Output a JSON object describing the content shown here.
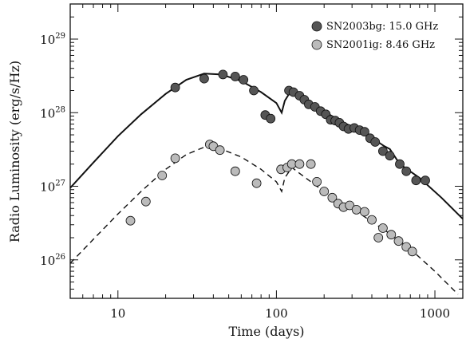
{
  "chart_data": {
    "type": "scatter",
    "title": "",
    "xlabel": "Time (days)",
    "ylabel": "Radio Luminosity (erg/s/Hz)",
    "x_scale": "log",
    "y_scale": "log",
    "xlim": [
      5,
      1500
    ],
    "ylim": [
      3e+25,
      3e+29
    ],
    "x_ticks": [
      {
        "value": 10,
        "label": "10"
      },
      {
        "value": 100,
        "label": "100"
      },
      {
        "value": 1000,
        "label": "1000"
      }
    ],
    "y_ticks": [
      {
        "value": 1e+26,
        "base": "10",
        "exp": "26"
      },
      {
        "value": 1e+27,
        "base": "10",
        "exp": "27"
      },
      {
        "value": 1e+28,
        "base": "10",
        "exp": "28"
      },
      {
        "value": 1e+29,
        "base": "10",
        "exp": "29"
      }
    ],
    "legend_position": "top-right",
    "grid": false,
    "series": [
      {
        "name": "SN2003bg: 15.0 GHz",
        "marker_color": "#555555",
        "points": [
          {
            "x": 23,
            "y": 2.2e+28
          },
          {
            "x": 35,
            "y": 2.9e+28
          },
          {
            "x": 46,
            "y": 3.3e+28
          },
          {
            "x": 55,
            "y": 3.1e+28
          },
          {
            "x": 62,
            "y": 2.8e+28
          },
          {
            "x": 72,
            "y": 2e+28
          },
          {
            "x": 85,
            "y": 9.3e+27
          },
          {
            "x": 92,
            "y": 8.3e+27
          },
          {
            "x": 120,
            "y": 2e+28
          },
          {
            "x": 128,
            "y": 1.9e+28
          },
          {
            "x": 140,
            "y": 1.7e+28
          },
          {
            "x": 150,
            "y": 1.5e+28
          },
          {
            "x": 160,
            "y": 1.3e+28
          },
          {
            "x": 175,
            "y": 1.2e+28
          },
          {
            "x": 190,
            "y": 1.05e+28
          },
          {
            "x": 205,
            "y": 9.5e+27
          },
          {
            "x": 220,
            "y": 8e+27
          },
          {
            "x": 235,
            "y": 7.8e+27
          },
          {
            "x": 250,
            "y": 7.3e+27
          },
          {
            "x": 265,
            "y": 6.5e+27
          },
          {
            "x": 285,
            "y": 6e+27
          },
          {
            "x": 310,
            "y": 6.2e+27
          },
          {
            "x": 335,
            "y": 5.8e+27
          },
          {
            "x": 360,
            "y": 5.5e+27
          },
          {
            "x": 390,
            "y": 4.5e+27
          },
          {
            "x": 420,
            "y": 4e+27
          },
          {
            "x": 470,
            "y": 3e+27
          },
          {
            "x": 520,
            "y": 2.6e+27
          },
          {
            "x": 600,
            "y": 2e+27
          },
          {
            "x": 660,
            "y": 1.6e+27
          },
          {
            "x": 760,
            "y": 1.2e+27
          },
          {
            "x": 870,
            "y": 1.2e+27
          }
        ],
        "model": [
          {
            "x": 5,
            "y": 9.5e+26
          },
          {
            "x": 7,
            "y": 2.1e+27
          },
          {
            "x": 10,
            "y": 4.8e+27
          },
          {
            "x": 14,
            "y": 9.5e+27
          },
          {
            "x": 20,
            "y": 1.8e+28
          },
          {
            "x": 27,
            "y": 2.8e+28
          },
          {
            "x": 35,
            "y": 3.4e+28
          },
          {
            "x": 45,
            "y": 3.3e+28
          },
          {
            "x": 60,
            "y": 2.7e+28
          },
          {
            "x": 80,
            "y": 1.9e+28
          },
          {
            "x": 100,
            "y": 1.35e+28
          },
          {
            "x": 108,
            "y": 1e+28
          },
          {
            "x": 113,
            "y": 1.45e+28
          },
          {
            "x": 122,
            "y": 1.9e+28
          },
          {
            "x": 140,
            "y": 1.65e+28
          },
          {
            "x": 180,
            "y": 1.2e+28
          },
          {
            "x": 250,
            "y": 7.8e+27
          },
          {
            "x": 350,
            "y": 5.5e+27
          },
          {
            "x": 480,
            "y": 3.5e+27
          },
          {
            "x": 520,
            "y": 3.2e+27
          },
          {
            "x": 600,
            "y": 2e+27
          },
          {
            "x": 800,
            "y": 1.3e+27
          },
          {
            "x": 1100,
            "y": 7e+26
          },
          {
            "x": 1500,
            "y": 3.6e+26
          }
        ]
      },
      {
        "name": "SN2001ig: 8.46 GHz",
        "marker_color": "#bbbbbb",
        "points": [
          {
            "x": 12,
            "y": 3.4e+26
          },
          {
            "x": 15,
            "y": 6.2e+26
          },
          {
            "x": 19,
            "y": 1.4e+27
          },
          {
            "x": 23,
            "y": 2.4e+27
          },
          {
            "x": 38,
            "y": 3.7e+27
          },
          {
            "x": 40,
            "y": 3.5e+27
          },
          {
            "x": 44,
            "y": 3.1e+27
          },
          {
            "x": 55,
            "y": 1.6e+27
          },
          {
            "x": 75,
            "y": 1.1e+27
          },
          {
            "x": 107,
            "y": 1.7e+27
          },
          {
            "x": 117,
            "y": 1.8e+27
          },
          {
            "x": 125,
            "y": 2e+27
          },
          {
            "x": 140,
            "y": 2e+27
          },
          {
            "x": 165,
            "y": 2e+27
          },
          {
            "x": 180,
            "y": 1.15e+27
          },
          {
            "x": 200,
            "y": 8.5e+26
          },
          {
            "x": 225,
            "y": 7e+26
          },
          {
            "x": 245,
            "y": 5.8e+26
          },
          {
            "x": 265,
            "y": 5.2e+26
          },
          {
            "x": 290,
            "y": 5.5e+26
          },
          {
            "x": 320,
            "y": 4.8e+26
          },
          {
            "x": 360,
            "y": 4.5e+26
          },
          {
            "x": 400,
            "y": 3.5e+26
          },
          {
            "x": 440,
            "y": 2e+26
          },
          {
            "x": 470,
            "y": 2.7e+26
          },
          {
            "x": 530,
            "y": 2.2e+26
          },
          {
            "x": 590,
            "y": 1.8e+26
          },
          {
            "x": 660,
            "y": 1.5e+26
          },
          {
            "x": 720,
            "y": 1.3e+26
          }
        ],
        "model": [
          {
            "x": 5,
            "y": 9e+25
          },
          {
            "x": 7,
            "y": 1.9e+26
          },
          {
            "x": 10,
            "y": 4.2e+26
          },
          {
            "x": 14,
            "y": 8.5e+26
          },
          {
            "x": 20,
            "y": 1.7e+27
          },
          {
            "x": 27,
            "y": 2.7e+27
          },
          {
            "x": 35,
            "y": 3.4e+27
          },
          {
            "x": 45,
            "y": 3.2e+27
          },
          {
            "x": 60,
            "y": 2.5e+27
          },
          {
            "x": 80,
            "y": 1.7e+27
          },
          {
            "x": 100,
            "y": 1.15e+27
          },
          {
            "x": 108,
            "y": 8.5e+26
          },
          {
            "x": 113,
            "y": 1.3e+27
          },
          {
            "x": 125,
            "y": 1.8e+27
          },
          {
            "x": 140,
            "y": 1.5e+27
          },
          {
            "x": 180,
            "y": 1e+27
          },
          {
            "x": 250,
            "y": 6.3e+26
          },
          {
            "x": 350,
            "y": 4e+26
          },
          {
            "x": 500,
            "y": 2.4e+26
          },
          {
            "x": 700,
            "y": 1.4e+26
          },
          {
            "x": 1000,
            "y": 7e+25
          },
          {
            "x": 1400,
            "y": 3.4e+25
          }
        ]
      }
    ]
  }
}
